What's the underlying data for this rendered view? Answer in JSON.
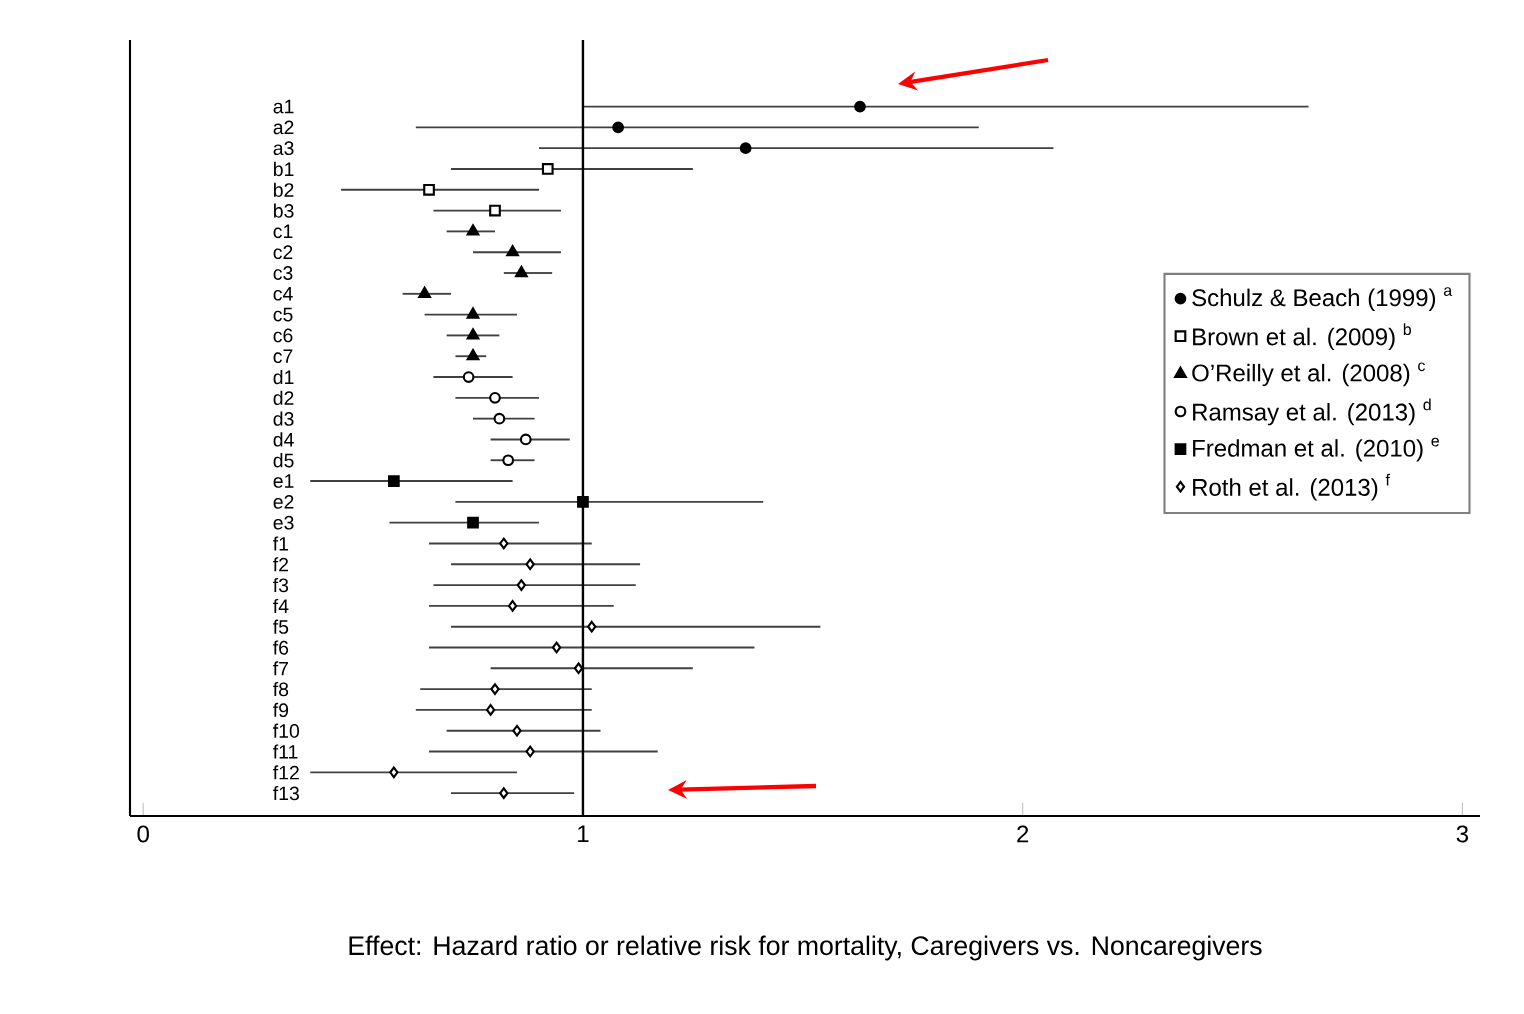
{
  "chart_data": {
    "type": "scatter",
    "orientation": "horizontal",
    "xlabel": "Effect: Hazard ratio or relative risk for mortality, Caregivers vs. Noncaregivers",
    "categories": [
      "a1",
      "a2",
      "a3",
      "b1",
      "b2",
      "b3",
      "c1",
      "c2",
      "c3",
      "c4",
      "c5",
      "c6",
      "c7",
      "d1",
      "d2",
      "d3",
      "d4",
      "d5",
      "e1",
      "e2",
      "e3",
      "f1",
      "f2",
      "f3",
      "f4",
      "f5",
      "f6",
      "f7",
      "f8",
      "f9",
      "f10",
      "f11",
      "f12",
      "f13"
    ],
    "xlim": [
      -0.03,
      3.04
    ],
    "xticks": [
      0,
      1,
      2,
      3
    ],
    "legend": "right",
    "ref_lines": [
      {
        "axis": "x",
        "value": 1,
        "color": "#000000"
      }
    ],
    "series": [
      {
        "name": "Schulz & Beach (1999) $^{a}$",
        "color": "#000000",
        "marker": "circle",
        "values": [
          1.63,
          1.08,
          1.37,
          null,
          null,
          null,
          null,
          null,
          null,
          null,
          null,
          null,
          null,
          null,
          null,
          null,
          null,
          null,
          null,
          null,
          null,
          null,
          null,
          null,
          null,
          null,
          null,
          null,
          null,
          null,
          null,
          null,
          null,
          null
        ],
        "errors": [
          [
            1.0,
            2.65
          ],
          [
            0.62,
            1.9
          ],
          [
            0.9,
            2.07
          ],
          null,
          null,
          null,
          null,
          null,
          null,
          null,
          null,
          null,
          null,
          null,
          null,
          null,
          null,
          null,
          null,
          null,
          null,
          null,
          null,
          null,
          null,
          null,
          null,
          null,
          null,
          null,
          null,
          null,
          null,
          null
        ]
      },
      {
        "name": "Brown et al. (2009) $^{b}$",
        "color": "#000000",
        "marker": "square",
        "values": [
          null,
          null,
          null,
          0.92,
          0.65,
          0.8,
          null,
          null,
          null,
          null,
          null,
          null,
          null,
          null,
          null,
          null,
          null,
          null,
          null,
          null,
          null,
          null,
          null,
          null,
          null,
          null,
          null,
          null,
          null,
          null,
          null,
          null,
          null,
          null
        ],
        "errors": [
          null,
          null,
          null,
          [
            0.7,
            1.25
          ],
          [
            0.45,
            0.9
          ],
          [
            0.66,
            0.95
          ],
          null,
          null,
          null,
          null,
          null,
          null,
          null,
          null,
          null,
          null,
          null,
          null,
          null,
          null,
          null,
          null,
          null,
          null,
          null,
          null,
          null,
          null,
          null,
          null,
          null,
          null,
          null,
          null
        ]
      },
      {
        "name": "O’Reilly et al. (2008) $^{c}$",
        "color": "#000000",
        "marker": "triangle",
        "values": [
          null,
          null,
          null,
          null,
          null,
          null,
          0.75,
          0.84,
          0.86,
          0.64,
          0.75,
          0.75,
          0.75,
          null,
          null,
          null,
          null,
          null,
          null,
          null,
          null,
          null,
          null,
          null,
          null,
          null,
          null,
          null,
          null,
          null,
          null,
          null,
          null,
          null
        ],
        "errors": [
          null,
          null,
          null,
          null,
          null,
          null,
          [
            0.69,
            0.8
          ],
          [
            0.75,
            0.95
          ],
          [
            0.82,
            0.93
          ],
          [
            0.59,
            0.7
          ],
          [
            0.64,
            0.85
          ],
          [
            0.69,
            0.81
          ],
          [
            0.71,
            0.78
          ],
          null,
          null,
          null,
          null,
          null,
          null,
          null,
          null,
          null,
          null,
          null,
          null,
          null,
          null,
          null,
          null,
          null,
          null,
          null,
          null,
          null
        ]
      },
      {
        "name": "Ramsay et al. (2013) $^{d}$",
        "color": "#000000",
        "marker": "circle",
        "values": [
          null,
          null,
          null,
          null,
          null,
          null,
          null,
          null,
          null,
          null,
          null,
          null,
          null,
          0.74,
          0.8,
          0.81,
          0.87,
          0.83,
          null,
          null,
          null,
          null,
          null,
          null,
          null,
          null,
          null,
          null,
          null,
          null,
          null,
          null,
          null,
          null
        ],
        "errors": [
          null,
          null,
          null,
          null,
          null,
          null,
          null,
          null,
          null,
          null,
          null,
          null,
          null,
          [
            0.66,
            0.84
          ],
          [
            0.71,
            0.9
          ],
          [
            0.75,
            0.89
          ],
          [
            0.79,
            0.97
          ],
          [
            0.79,
            0.89
          ],
          null,
          null,
          null,
          null,
          null,
          null,
          null,
          null,
          null,
          null,
          null,
          null,
          null,
          null,
          null,
          null
        ]
      },
      {
        "name": "Fredman et al. (2010) $^{e}$",
        "color": "#000000",
        "marker": "square",
        "values": [
          null,
          null,
          null,
          null,
          null,
          null,
          null,
          null,
          null,
          null,
          null,
          null,
          null,
          null,
          null,
          null,
          null,
          null,
          0.57,
          1.0,
          0.75,
          null,
          null,
          null,
          null,
          null,
          null,
          null,
          null,
          null,
          null,
          null,
          null,
          null
        ],
        "errors": [
          null,
          null,
          null,
          null,
          null,
          null,
          null,
          null,
          null,
          null,
          null,
          null,
          null,
          null,
          null,
          null,
          null,
          null,
          [
            0.38,
            0.84
          ],
          [
            0.71,
            1.41
          ],
          [
            0.56,
            0.9
          ],
          null,
          null,
          null,
          null,
          null,
          null,
          null,
          null,
          null,
          null,
          null,
          null,
          null
        ]
      },
      {
        "name": "Roth et al. (2013) $^{f}$",
        "color": "#000000",
        "marker": "diamond",
        "values": [
          null,
          null,
          null,
          null,
          null,
          null,
          null,
          null,
          null,
          null,
          null,
          null,
          null,
          null,
          null,
          null,
          null,
          null,
          null,
          null,
          null,
          0.82,
          0.88,
          0.86,
          0.84,
          1.02,
          0.94,
          0.99,
          0.8,
          0.79,
          0.85,
          0.88,
          0.57,
          0.82
        ],
        "errors": [
          null,
          null,
          null,
          null,
          null,
          null,
          null,
          null,
          null,
          null,
          null,
          null,
          null,
          null,
          null,
          null,
          null,
          null,
          null,
          null,
          null,
          [
            0.65,
            1.02
          ],
          [
            0.7,
            1.13
          ],
          [
            0.66,
            1.12
          ],
          [
            0.65,
            1.07
          ],
          [
            0.7,
            1.54
          ],
          [
            0.65,
            1.39
          ],
          [
            0.79,
            1.25
          ],
          [
            0.63,
            1.02
          ],
          [
            0.62,
            1.02
          ],
          [
            0.69,
            1.04
          ],
          [
            0.65,
            1.17
          ],
          [
            0.38,
            0.85
          ],
          [
            0.7,
            0.98
          ]
        ]
      }
    ]
  }
}
